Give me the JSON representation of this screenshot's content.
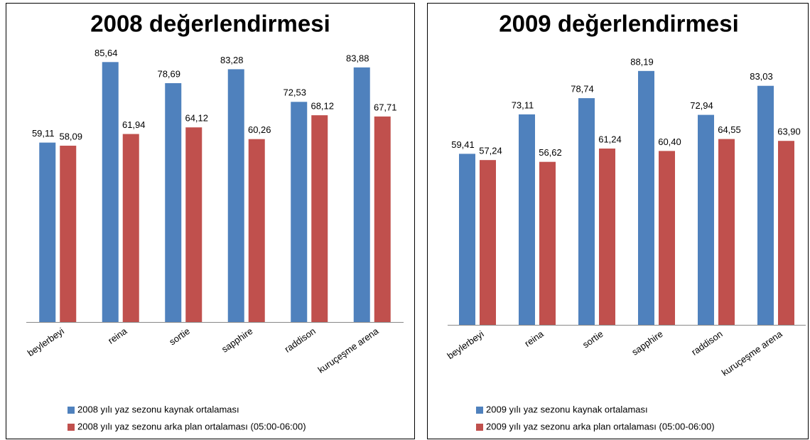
{
  "chart_data": [
    {
      "type": "bar",
      "title": "2008 değerlendirmesi",
      "categories": [
        "beylerbeyi",
        "reina",
        "sortie",
        "sapphire",
        "raddison",
        "kuruçeşme arena"
      ],
      "series": [
        {
          "name": "2008 yılı yaz sezonu kaynak ortalaması",
          "color": "#4f81bd",
          "values": [
            59.11,
            85.64,
            78.69,
            83.28,
            72.53,
            83.88
          ],
          "value_labels": [
            "59,11",
            "85,64",
            "78,69",
            "83,28",
            "72,53",
            "83,88"
          ]
        },
        {
          "name": "2008 yılı yaz sezonu arka plan ortalaması (05:00-06:00)",
          "color": "#c0504d",
          "values": [
            58.09,
            61.94,
            64.12,
            60.26,
            68.12,
            67.71
          ],
          "value_labels": [
            "58,09",
            "61,94",
            "64,12",
            "60,26",
            "68,12",
            "67,71"
          ]
        }
      ],
      "ylim": [
        0,
        100
      ]
    },
    {
      "type": "bar",
      "title": "2009 değerlendirmesi",
      "categories": [
        "beylerbeyi",
        "reina",
        "sortie",
        "sapphire",
        "raddison",
        "kuruçeşme arena"
      ],
      "series": [
        {
          "name": "2009 yılı yaz sezonu kaynak ortalaması",
          "color": "#4f81bd",
          "values": [
            59.41,
            73.11,
            78.74,
            88.19,
            72.94,
            83.03
          ],
          "value_labels": [
            "59,41",
            "73,11",
            "78,74",
            "88,19",
            "72,94",
            "83,03"
          ]
        },
        {
          "name": "2009 yılı yaz sezonu arka plan ortalaması (05:00-06:00)",
          "color": "#c0504d",
          "values": [
            57.24,
            56.62,
            61.24,
            60.4,
            64.55,
            63.9
          ],
          "value_labels": [
            "57,24",
            "56,62",
            "61,24",
            "60,40",
            "64,55",
            "63,90"
          ]
        }
      ],
      "ylim": [
        0,
        100
      ]
    }
  ]
}
